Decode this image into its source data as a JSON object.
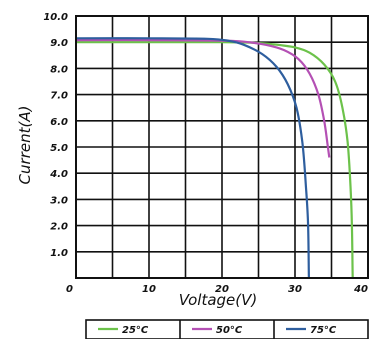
{
  "chart_data": {
    "type": "line",
    "xlabel": "Voltage(V)",
    "ylabel": "Current(A)",
    "xlim": [
      0,
      40
    ],
    "ylim": [
      0,
      10
    ],
    "x_ticks": [
      "0",
      "10",
      "20",
      "30",
      "40"
    ],
    "y_ticks": [
      "1.0",
      "2.0",
      "3.0",
      "4.0",
      "5.0",
      "6.0",
      "7.0",
      "8.0",
      "9.0",
      "10.0"
    ],
    "grid": true,
    "legend_position": "bottom",
    "series": [
      {
        "name": "25°C",
        "color": "#6cc24a",
        "points": [
          [
            0,
            9.0
          ],
          [
            10,
            9.0
          ],
          [
            20,
            9.0
          ],
          [
            24,
            8.98
          ],
          [
            27,
            8.92
          ],
          [
            30,
            8.8
          ],
          [
            32,
            8.6
          ],
          [
            34,
            8.15
          ],
          [
            35.5,
            7.5
          ],
          [
            36.5,
            6.5
          ],
          [
            37.2,
            5.2
          ],
          [
            37.6,
            3.5
          ],
          [
            37.8,
            2.0
          ],
          [
            37.9,
            0
          ]
        ]
      },
      {
        "name": "50°C",
        "color": "#b450b4",
        "points": [
          [
            0,
            9.08
          ],
          [
            10,
            9.08
          ],
          [
            20,
            9.06
          ],
          [
            23,
            9.02
          ],
          [
            26,
            8.9
          ],
          [
            28.5,
            8.7
          ],
          [
            30.5,
            8.35
          ],
          [
            32,
            7.8
          ],
          [
            33.2,
            7.0
          ],
          [
            34,
            6.0
          ],
          [
            34.5,
            5.0
          ],
          [
            34.7,
            4.6
          ]
        ]
      },
      {
        "name": "75°C",
        "color": "#2e5e9e",
        "points": [
          [
            0,
            9.15
          ],
          [
            10,
            9.15
          ],
          [
            18,
            9.13
          ],
          [
            21,
            9.05
          ],
          [
            23,
            8.9
          ],
          [
            25.5,
            8.55
          ],
          [
            27.5,
            8.05
          ],
          [
            29,
            7.4
          ],
          [
            30.2,
            6.5
          ],
          [
            31,
            5.2
          ],
          [
            31.5,
            3.5
          ],
          [
            31.8,
            2.0
          ],
          [
            31.9,
            0
          ]
        ]
      }
    ]
  }
}
